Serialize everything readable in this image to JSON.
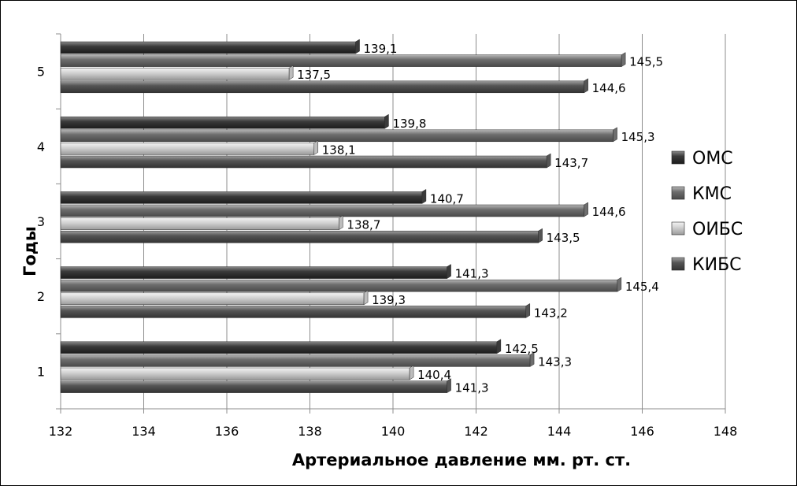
{
  "chart_data": {
    "type": "bar",
    "orientation": "horizontal",
    "title": "",
    "xlabel": "Артериальное давление мм. рт. ст.",
    "ylabel": "Годы",
    "xlim": [
      132,
      148
    ],
    "x_ticks": [
      "132",
      "134",
      "136",
      "138",
      "140",
      "142",
      "144",
      "146",
      "148"
    ],
    "categories": [
      "1",
      "2",
      "3",
      "4",
      "5"
    ],
    "grid": "vertical",
    "legend_position": "right",
    "series": [
      {
        "name": "ОМС",
        "values": [
          142.5,
          141.3,
          140.7,
          139.8,
          139.1
        ],
        "labels": [
          "142,5",
          "141,3",
          "140,7",
          "139,8",
          "139,1"
        ],
        "color": "#3a3a3a"
      },
      {
        "name": "КМС",
        "values": [
          143.3,
          145.4,
          144.6,
          145.3,
          145.5
        ],
        "labels": [
          "143,3",
          "145,4",
          "144,6",
          "145,3",
          "145,5"
        ],
        "color": "#6e6e6e"
      },
      {
        "name": "ОИБС",
        "values": [
          140.4,
          139.3,
          138.7,
          138.1,
          137.5
        ],
        "labels": [
          "140,4",
          "139,3",
          "138,7",
          "138,1",
          "137,5"
        ],
        "color": "#bdbdbd"
      },
      {
        "name": "КИБС",
        "values": [
          141.3,
          143.2,
          143.5,
          143.7,
          144.6
        ],
        "labels": [
          "141,3",
          "143,2",
          "143,5",
          "143,7",
          "144,6"
        ],
        "color": "#555555"
      }
    ]
  }
}
